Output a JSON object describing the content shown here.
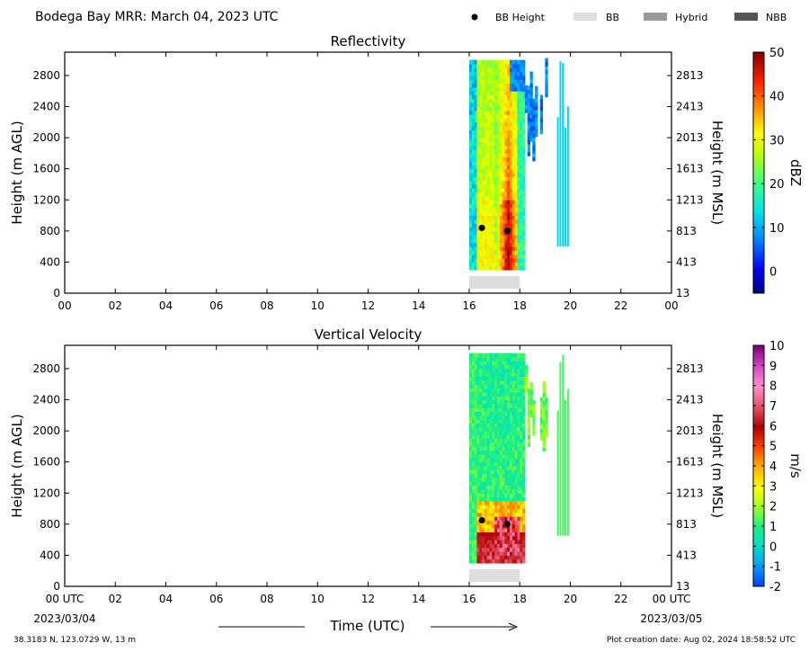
{
  "header": {
    "title": "Bodega Bay MRR:  March 04, 2023 UTC",
    "legend": [
      {
        "label": "BB Height",
        "marker": "dot",
        "color": "#000000"
      },
      {
        "label": "BB",
        "marker": "box",
        "color": "#dddddd"
      },
      {
        "label": "Hybrid",
        "marker": "box",
        "color": "#999999"
      },
      {
        "label": "NBB",
        "marker": "box",
        "color": "#555555"
      }
    ]
  },
  "footer": {
    "coords": "38.3183 N, 123.0729 W, 13 m",
    "creation": "Plot creation date: Aug 02, 2024 18:58:52 UTC",
    "xlabel": "Time (UTC)",
    "start_date": "2023/03/04",
    "end_date": "2023/03/05"
  },
  "chart_data": [
    {
      "type": "heatmap",
      "title": "Reflectivity",
      "ylabel": "Height (m AGL)",
      "ylabel_right": "Height (m MSL)",
      "xlim": [
        0,
        24
      ],
      "ylim": [
        0,
        3100
      ],
      "x_ticks": [
        "00",
        "02",
        "04",
        "06",
        "08",
        "10",
        "12",
        "14",
        "16",
        "18",
        "20",
        "22",
        "00"
      ],
      "y_ticks": [
        0,
        400,
        800,
        1200,
        1600,
        2000,
        2400,
        2800
      ],
      "y_ticks_right": [
        "13",
        "413",
        "813",
        "1213",
        "1613",
        "2013",
        "2413",
        "2813"
      ],
      "colorbar": {
        "label": "dBZ",
        "ticks": [
          0,
          10,
          20,
          30,
          40,
          50
        ],
        "min": -5,
        "max": 50
      },
      "bb_height": [
        {
          "x": 16.5,
          "y": 840
        },
        {
          "x": 17.5,
          "y": 800
        }
      ],
      "bb_periods": [
        {
          "type": "BB",
          "start": 16.0,
          "end": 18.0
        }
      ]
    },
    {
      "type": "heatmap",
      "title": "Vertical Velocity",
      "ylabel": "Height (m AGL)",
      "ylabel_right": "Height (m MSL)",
      "xlim": [
        0,
        24
      ],
      "ylim": [
        0,
        3100
      ],
      "x_ticks": [
        "00 UTC",
        "02",
        "04",
        "06",
        "08",
        "10",
        "12",
        "14",
        "16",
        "18",
        "20",
        "22",
        "00 UTC"
      ],
      "y_ticks": [
        0,
        400,
        800,
        1200,
        1600,
        2000,
        2400,
        2800
      ],
      "y_ticks_right": [
        "13",
        "413",
        "813",
        "1213",
        "1613",
        "2013",
        "2413",
        "2813"
      ],
      "colorbar": {
        "label": "m/s",
        "ticks": [
          -2,
          -1,
          0,
          1,
          2,
          3,
          4,
          5,
          6,
          7,
          8,
          9,
          10
        ],
        "min": -2,
        "max": 10
      },
      "bb_height": [
        {
          "x": 16.5,
          "y": 850
        },
        {
          "x": 17.5,
          "y": 800
        }
      ],
      "bb_periods": [
        {
          "type": "BB",
          "start": 16.0,
          "end": 18.0
        }
      ]
    }
  ]
}
